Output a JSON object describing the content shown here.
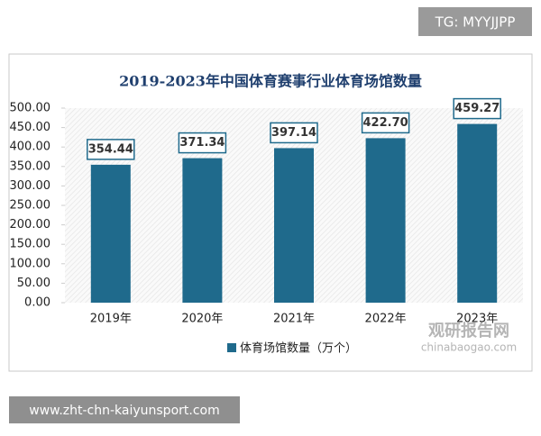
{
  "chart_data": {
    "type": "bar",
    "title": "2019-2023年中国体育赛事行业体育场馆数量",
    "categories": [
      "2019年",
      "2020年",
      "2021年",
      "2022年",
      "2023年"
    ],
    "series": [
      {
        "name": "体育场馆数量（万个）",
        "color": "#1f6a8c",
        "values": [
          354.44,
          371.34,
          397.14,
          422.7,
          459.27
        ],
        "value_labels": [
          "354.44",
          "371.34",
          "397.14",
          "422.70",
          "459.27"
        ]
      }
    ],
    "ylim": [
      0,
      500
    ],
    "yticks": [
      {
        "value": 0,
        "label": "0.00"
      },
      {
        "value": 50,
        "label": "50.00"
      },
      {
        "value": 100,
        "label": "100.00"
      },
      {
        "value": 150,
        "label": "150.00"
      },
      {
        "value": 200,
        "label": "200.00"
      },
      {
        "value": 250,
        "label": "250.00"
      },
      {
        "value": 300,
        "label": "300.00"
      },
      {
        "value": 350,
        "label": "350.00"
      },
      {
        "value": 400,
        "label": "400.00"
      },
      {
        "value": 450,
        "label": "450.00"
      },
      {
        "value": 500,
        "label": "500.00"
      }
    ],
    "legend": "bottom"
  },
  "header_tag": "TG: MYYJJPP",
  "watermark": {
    "name": "观研报告网",
    "url": "chinabaogao.com"
  },
  "footer_url": "www.zht-chn-kaiyunsport.com"
}
